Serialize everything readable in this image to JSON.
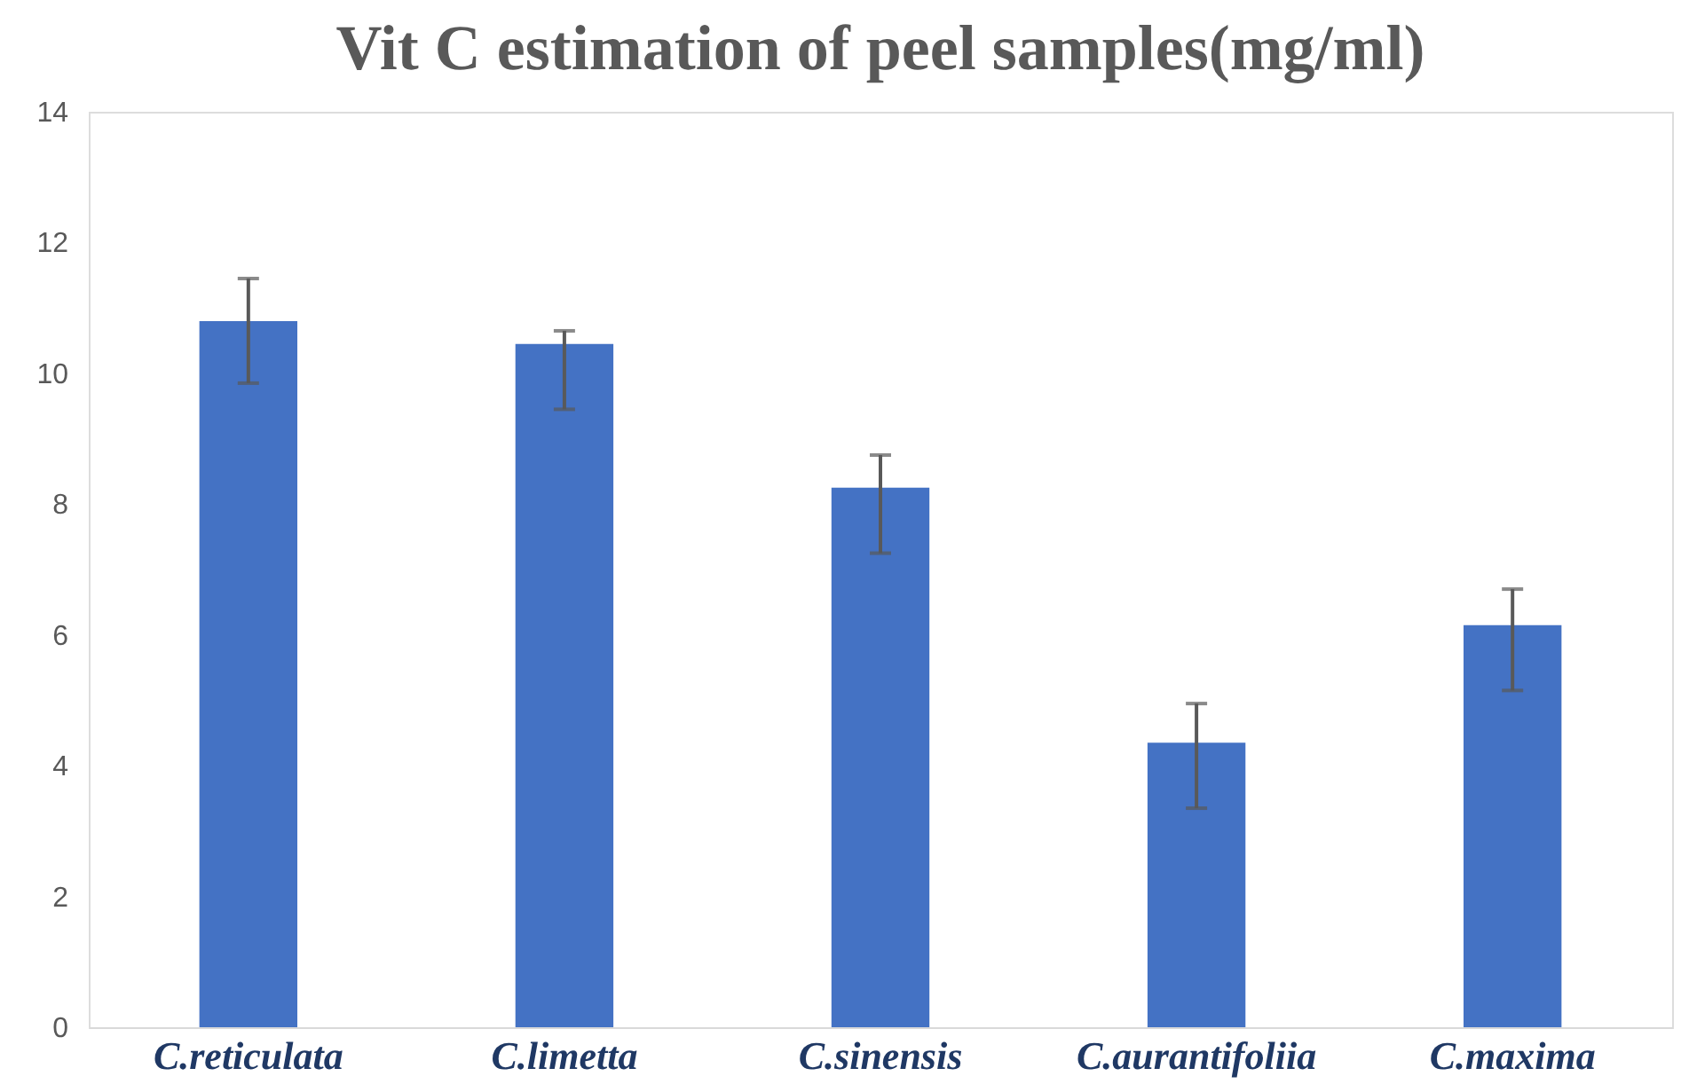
{
  "chart_data": {
    "type": "bar",
    "title": "Vit C estimation of peel samples(mg/ml)",
    "categories": [
      "C.reticulata",
      "C.limetta",
      "C.sinensis",
      "C.aurantifoliia",
      "C.maxima"
    ],
    "values": [
      10.8,
      10.45,
      8.25,
      4.35,
      6.15
    ],
    "errors": [
      [
        9.85,
        11.45
      ],
      [
        9.45,
        10.65
      ],
      [
        7.25,
        8.75
      ],
      [
        3.35,
        4.95
      ],
      [
        5.15,
        6.7
      ]
    ],
    "color": "#4472c4",
    "ylim": [
      0,
      14
    ],
    "yticks": [
      0,
      2,
      4,
      6,
      8,
      10,
      12,
      14
    ],
    "grid": false
  }
}
